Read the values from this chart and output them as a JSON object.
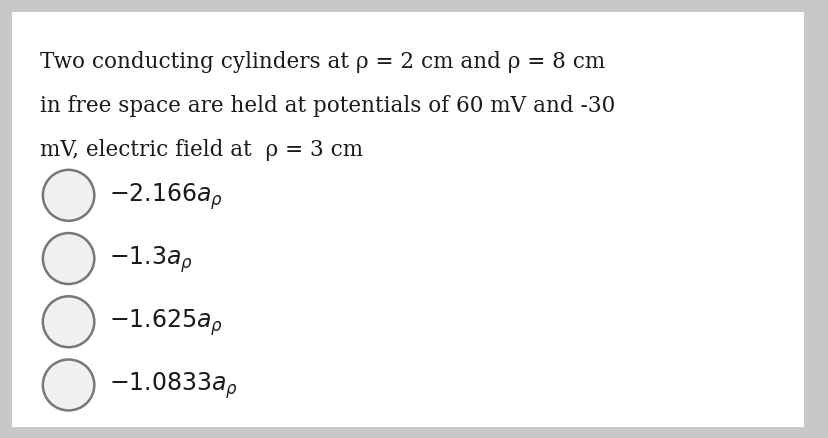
{
  "outer_bg": "#c8c8c8",
  "content_bg": "#f0f0f0",
  "inner_bg": "#ffffff",
  "question_line1": "Two conducting cylinders at ρ = 2 cm and ρ = 8 cm",
  "question_line2": "in free space are held at potentials of 60 mV and -30",
  "question_line3": "mV, electric field at  ρ = 3 cm",
  "options_math": [
    "$-2.166a_{\\rho}$",
    "$-1.3a_{\\rho}$",
    "$-1.625a_{\\rho}$",
    "$-1.0833a_{\\rho}$"
  ],
  "circle_edge_color": "#777777",
  "circle_fill_color": "#f0f0f0",
  "text_color": "#1a1a1a",
  "q_fontsize": 15.5,
  "opt_fontsize": 17,
  "figwidth": 8.29,
  "figheight": 4.39,
  "dpi": 100
}
